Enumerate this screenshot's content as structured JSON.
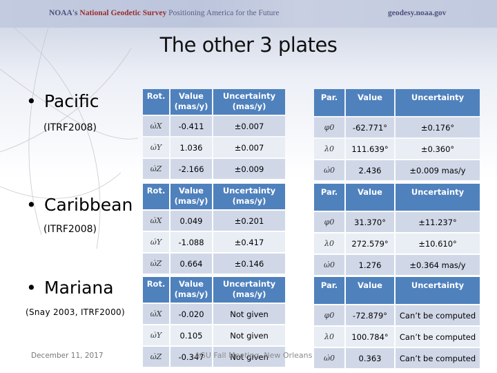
{
  "banner": {
    "org": "NOAA's",
    "agency": "National Geodetic Survey",
    "tagline": "Positioning America for the Future",
    "url": "geodesy.noaa.gov"
  },
  "title": "The other 3 plates",
  "plates": [
    {
      "name": "Pacific",
      "reference": "(ITRF2008)",
      "rotation_table": {
        "headers": [
          "Rot.",
          "Value (mas/y)",
          "Uncertainty (mas/y)"
        ],
        "rows": [
          {
            "symbol": "ω̇X",
            "value": "-0.411",
            "uncertainty": "±0.007"
          },
          {
            "symbol": "ω̇Y",
            "value": "1.036",
            "uncertainty": "±0.007"
          },
          {
            "symbol": "ω̇Z",
            "value": "-2.166",
            "uncertainty": "±0.009"
          }
        ]
      },
      "pole_table": {
        "headers": [
          "Par.",
          "Value",
          "Uncertainty"
        ],
        "rows": [
          {
            "symbol": "φ0",
            "value": "-62.771°",
            "uncertainty": "±0.176°"
          },
          {
            "symbol": "λ0",
            "value": "111.639°",
            "uncertainty": "±0.360°"
          },
          {
            "symbol": "ω̇0",
            "value": "2.436",
            "uncertainty": "±0.009 mas/y"
          }
        ]
      }
    },
    {
      "name": "Caribbean",
      "reference": "(ITRF2008)",
      "rotation_table": {
        "headers": [
          "Rot.",
          "Value (mas/y)",
          "Uncertainty (mas/y)"
        ],
        "rows": [
          {
            "symbol": "ω̇X",
            "value": "0.049",
            "uncertainty": "±0.201"
          },
          {
            "symbol": "ω̇Y",
            "value": "-1.088",
            "uncertainty": "±0.417"
          },
          {
            "symbol": "ω̇Z",
            "value": "0.664",
            "uncertainty": "±0.146"
          }
        ]
      },
      "pole_table": {
        "headers": [
          "Par.",
          "Value",
          "Uncertainty"
        ],
        "rows": [
          {
            "symbol": "φ0",
            "value": "31.370°",
            "uncertainty": "±11.237°"
          },
          {
            "symbol": "λ0",
            "value": "272.579°",
            "uncertainty": "±10.610°"
          },
          {
            "symbol": "ω̇0",
            "value": "1.276",
            "uncertainty": "±0.364 mas/y"
          }
        ]
      }
    },
    {
      "name": "Mariana",
      "reference": "(Snay 2003, ITRF2000)",
      "rotation_table": {
        "headers": [
          "Rot.",
          "Value (mas/y)",
          "Uncertainty (mas/y)"
        ],
        "rows": [
          {
            "symbol": "ω̇X",
            "value": "-0.020",
            "uncertainty": "Not given"
          },
          {
            "symbol": "ω̇Y",
            "value": "0.105",
            "uncertainty": "Not given"
          },
          {
            "symbol": "ω̇Z",
            "value": "-0.347",
            "uncertainty": "Not given"
          }
        ]
      },
      "pole_table": {
        "headers": [
          "Par.",
          "Value",
          "Uncertainty"
        ],
        "rows": [
          {
            "symbol": "φ0",
            "value": "-72.879°",
            "uncertainty": "Can’t be computed"
          },
          {
            "symbol": "λ0",
            "value": "100.784°",
            "uncertainty": "Can’t be computed"
          },
          {
            "symbol": "ω̇0",
            "value": "0.363",
            "uncertainty": "Can’t be computed"
          }
        ]
      }
    }
  ],
  "header_lines": {
    "value_l1": "Value",
    "value_l2": "(mas/y)",
    "unc_l1": "Uncertainty",
    "unc_l2": "(mas/y)"
  },
  "footer": {
    "date": "December 11, 2017",
    "event": "AGU Fall Meeting, New Orleans"
  }
}
